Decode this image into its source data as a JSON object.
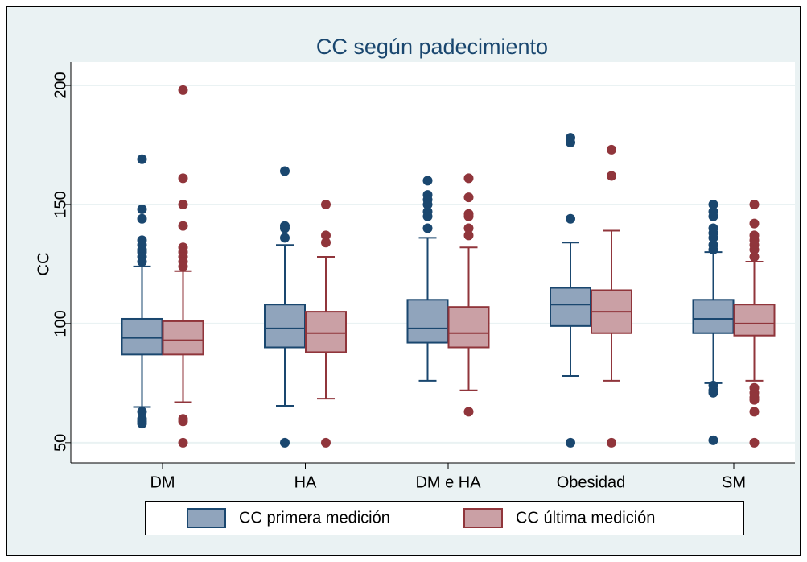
{
  "chart_data": {
    "type": "box",
    "title": "CC según padecimiento",
    "y_label": "CC",
    "categories": [
      "DM",
      "HA",
      "DM e HA",
      "Obesidad",
      "SM"
    ],
    "series": [
      {
        "name": "CC primera medición",
        "color": "#1a476f",
        "fill": "#90a4bc",
        "whisker_low": [
          65,
          65.5,
          76,
          78,
          75
        ],
        "q1": [
          87,
          90,
          92,
          99,
          96
        ],
        "median": [
          94,
          98,
          98,
          108,
          102
        ],
        "q3": [
          102,
          108,
          110,
          115,
          110
        ],
        "whisker_high": [
          124,
          133,
          136,
          134,
          130
        ],
        "outliers": [
          [
            169,
            148,
            144,
            135,
            133,
            131,
            130,
            128,
            126,
            63,
            60,
            59,
            58
          ],
          [
            164,
            141,
            140,
            136,
            50
          ],
          [
            160,
            154,
            152,
            150,
            147,
            145,
            140
          ],
          [
            178,
            176,
            144,
            50
          ],
          [
            150,
            147,
            145,
            140,
            138,
            136,
            133,
            131,
            74,
            72,
            71,
            51
          ]
        ]
      },
      {
        "name": "CC última medición",
        "color": "#90353b",
        "fill": "#caa0a5",
        "whisker_low": [
          67,
          68.5,
          72,
          76,
          76
        ],
        "q1": [
          87,
          88,
          90,
          96,
          95
        ],
        "median": [
          93,
          96,
          96,
          105,
          100
        ],
        "q3": [
          101,
          105,
          107,
          114,
          108
        ],
        "whisker_high": [
          122,
          128,
          132,
          139,
          126
        ],
        "outliers": [
          [
            198,
            161,
            150,
            141,
            132,
            130,
            128,
            126,
            124,
            60,
            59,
            50
          ],
          [
            150,
            137,
            134,
            50
          ],
          [
            161,
            153,
            146,
            145,
            140,
            137,
            63
          ],
          [
            173,
            162,
            50
          ],
          [
            150,
            142,
            137,
            135,
            133,
            131,
            128,
            73,
            71,
            69,
            68,
            63,
            50
          ]
        ]
      }
    ],
    "ylim": [
      41.5,
      209.8
    ],
    "yticks": [
      50,
      100,
      150,
      200
    ],
    "grid": true
  }
}
